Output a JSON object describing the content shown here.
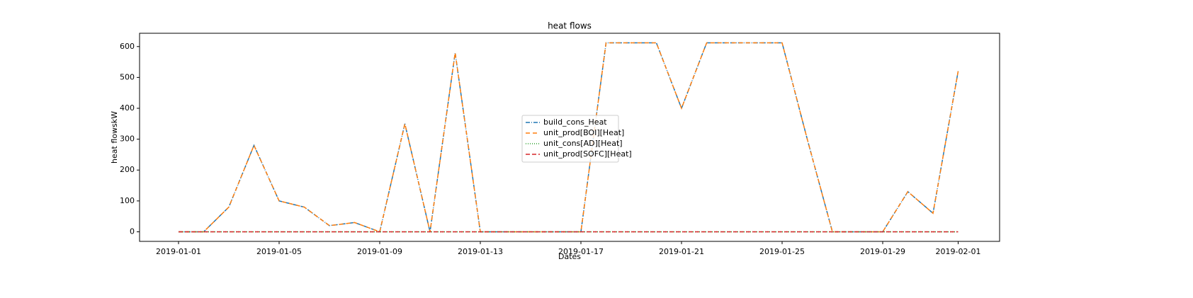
{
  "chart_data": {
    "type": "line",
    "title": "heat flows",
    "xlabel": "Dates",
    "ylabel": "heat flowskW",
    "x": [
      "2019-01-01",
      "2019-01-02",
      "2019-01-03",
      "2019-01-04",
      "2019-01-05",
      "2019-01-06",
      "2019-01-07",
      "2019-01-08",
      "2019-01-09",
      "2019-01-10",
      "2019-01-11",
      "2019-01-12",
      "2019-01-13",
      "2019-01-14",
      "2019-01-15",
      "2019-01-16",
      "2019-01-17",
      "2019-01-18",
      "2019-01-19",
      "2019-01-20",
      "2019-01-21",
      "2019-01-22",
      "2019-01-23",
      "2019-01-24",
      "2019-01-25",
      "2019-01-26",
      "2019-01-27",
      "2019-01-28",
      "2019-01-29",
      "2019-01-30",
      "2019-01-31",
      "2019-02-01"
    ],
    "series": [
      {
        "name": "build_cons_Heat",
        "color": "#1f77b4",
        "dash": "6 2 1 2",
        "values": [
          0,
          0,
          80,
          280,
          100,
          80,
          20,
          30,
          0,
          350,
          0,
          580,
          0,
          0,
          0,
          0,
          0,
          612,
          612,
          612,
          400,
          612,
          612,
          612,
          612,
          300,
          0,
          0,
          0,
          130,
          60,
          520
        ]
      },
      {
        "name": "unit_prod[BOI][Heat]",
        "color": "#ff7f0e",
        "dash": "6 4",
        "values": [
          0,
          0,
          80,
          280,
          100,
          80,
          20,
          30,
          0,
          350,
          0,
          580,
          0,
          0,
          0,
          0,
          0,
          612,
          612,
          612,
          400,
          612,
          612,
          612,
          612,
          300,
          0,
          0,
          0,
          130,
          60,
          520
        ]
      },
      {
        "name": "unit_cons[AD][Heat]",
        "color": "#2ca02c",
        "dash": "1 2",
        "values": [
          0,
          0,
          0,
          0,
          0,
          0,
          0,
          0,
          0,
          0,
          0,
          0,
          0,
          0,
          0,
          0,
          0,
          0,
          0,
          0,
          0,
          0,
          0,
          0,
          0,
          0,
          0,
          0,
          0,
          0,
          0,
          0
        ]
      },
      {
        "name": "unit_prod[SOFC][Heat]",
        "color": "#d62728",
        "dash": "6 3",
        "values": [
          0,
          0,
          0,
          0,
          0,
          0,
          0,
          0,
          0,
          0,
          0,
          0,
          0,
          0,
          0,
          0,
          0,
          0,
          0,
          0,
          0,
          0,
          0,
          0,
          0,
          0,
          0,
          0,
          0,
          0,
          0,
          0
        ]
      }
    ],
    "xticks": [
      "2019-01-01",
      "2019-01-05",
      "2019-01-09",
      "2019-01-13",
      "2019-01-17",
      "2019-01-21",
      "2019-01-25",
      "2019-01-29",
      "2019-02-01"
    ],
    "ylim": [
      -31,
      643
    ],
    "yticks": [
      0,
      100,
      200,
      300,
      400,
      500,
      600
    ],
    "legend": "center"
  }
}
